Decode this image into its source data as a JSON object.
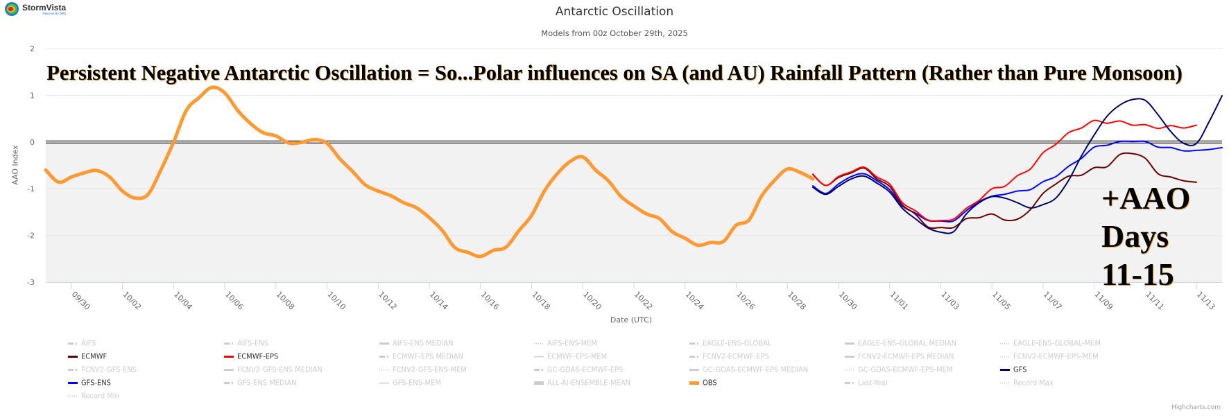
{
  "logo": {
    "brand": "StormVista",
    "tagline": "Powered By DMS"
  },
  "credits": "Highcharts.com",
  "annotations": {
    "headline": "Persistent Negative Antarctic Oscillation = So...Polar influences on SA (and AU) Rainfall Pattern (Rather than Pure Monsoon)",
    "callout_lines": [
      "+AAO",
      "Days",
      "11-15"
    ]
  },
  "chart_data": {
    "type": "line",
    "title": "Antarctic Oscillation",
    "subtitle": "Models from 00z October 29th, 2025",
    "xlabel": "Date (UTC)",
    "ylabel": "AAO Index",
    "xlim": [
      "2025-09-29T00:00Z",
      "2025-11-14T00:00Z"
    ],
    "ylim": [
      -3,
      2
    ],
    "y_ticks": [
      2,
      1,
      0,
      -1,
      -2,
      -3
    ],
    "x_tick_labels": [
      "09/30",
      "10/02",
      "10/04",
      "10/06",
      "10/08",
      "10/10",
      "10/12",
      "10/14",
      "10/16",
      "10/18",
      "10/20",
      "10/22",
      "10/24",
      "10/26",
      "10/28",
      "10/30",
      "11/01",
      "11/03",
      "11/05",
      "11/07",
      "11/09",
      "11/11",
      "11/13"
    ],
    "grid": true,
    "zero_line": true,
    "negative_band": {
      "from": -3,
      "to": 0,
      "color": "#f2f2f2"
    },
    "legend_placement": "bottom",
    "series": [
      {
        "name": "OBS",
        "color": "#ff9933",
        "width": 5,
        "points": [
          [
            "2025-09-29T00",
            -0.6
          ],
          [
            "2025-09-29T12",
            -0.86
          ],
          [
            "2025-09-30T00",
            -0.75
          ],
          [
            "2025-09-30T12",
            -0.66
          ],
          [
            "2025-10-01T00",
            -0.61
          ],
          [
            "2025-10-01T12",
            -0.75
          ],
          [
            "2025-10-02T00",
            -1.05
          ],
          [
            "2025-10-02T12",
            -1.2
          ],
          [
            "2025-10-03T00",
            -1.12
          ],
          [
            "2025-10-03T12",
            -0.6
          ],
          [
            "2025-10-04T00",
            0.0
          ],
          [
            "2025-10-04T12",
            0.68
          ],
          [
            "2025-10-05T00",
            0.95
          ],
          [
            "2025-10-05T12",
            1.17
          ],
          [
            "2025-10-06T00",
            1.05
          ],
          [
            "2025-10-06T12",
            0.68
          ],
          [
            "2025-10-07T00",
            0.4
          ],
          [
            "2025-10-07T12",
            0.2
          ],
          [
            "2025-10-08T00",
            0.13
          ],
          [
            "2025-10-08T12",
            -0.02
          ],
          [
            "2025-10-09T00",
            -0.01
          ],
          [
            "2025-10-09T12",
            0.05
          ],
          [
            "2025-10-10T00",
            -0.03
          ],
          [
            "2025-10-10T12",
            -0.36
          ],
          [
            "2025-10-11T00",
            -0.63
          ],
          [
            "2025-10-11T12",
            -0.92
          ],
          [
            "2025-10-12T00",
            -1.05
          ],
          [
            "2025-10-12T12",
            -1.15
          ],
          [
            "2025-10-13T00",
            -1.3
          ],
          [
            "2025-10-13T12",
            -1.41
          ],
          [
            "2025-10-14T00",
            -1.62
          ],
          [
            "2025-10-14T12",
            -1.89
          ],
          [
            "2025-10-15T00",
            -2.26
          ],
          [
            "2025-10-15T12",
            -2.36
          ],
          [
            "2025-10-16T00",
            -2.45
          ],
          [
            "2025-10-16T12",
            -2.32
          ],
          [
            "2025-10-17T00",
            -2.25
          ],
          [
            "2025-10-17T12",
            -1.9
          ],
          [
            "2025-10-18T00",
            -1.57
          ],
          [
            "2025-10-18T12",
            -1.05
          ],
          [
            "2025-10-19T00",
            -0.68
          ],
          [
            "2025-10-19T12",
            -0.42
          ],
          [
            "2025-10-20T00",
            -0.32
          ],
          [
            "2025-10-20T12",
            -0.6
          ],
          [
            "2025-10-21T00",
            -0.83
          ],
          [
            "2025-10-21T12",
            -1.17
          ],
          [
            "2025-10-22T00",
            -1.37
          ],
          [
            "2025-10-22T12",
            -1.54
          ],
          [
            "2025-10-23T00",
            -1.64
          ],
          [
            "2025-10-23T12",
            -1.92
          ],
          [
            "2025-10-24T00",
            -2.06
          ],
          [
            "2025-10-24T12",
            -2.21
          ],
          [
            "2025-10-25T00",
            -2.15
          ],
          [
            "2025-10-25T12",
            -2.13
          ],
          [
            "2025-10-26T00",
            -1.78
          ],
          [
            "2025-10-26T12",
            -1.67
          ],
          [
            "2025-10-27T00",
            -1.15
          ],
          [
            "2025-10-27T12",
            -0.82
          ],
          [
            "2025-10-28T00",
            -0.58
          ],
          [
            "2025-10-28T12",
            -0.65
          ],
          [
            "2025-10-29T00",
            -0.79
          ]
        ]
      },
      {
        "name": "ECMWF",
        "color": "#660000",
        "width": 2,
        "points": [
          [
            "2025-10-29T00",
            -0.7
          ],
          [
            "2025-10-29T12",
            -0.93
          ],
          [
            "2025-10-30T00",
            -0.76
          ],
          [
            "2025-10-30T12",
            -0.66
          ],
          [
            "2025-10-31T00",
            -0.56
          ],
          [
            "2025-10-31T12",
            -0.79
          ],
          [
            "2025-11-01T00",
            -0.95
          ],
          [
            "2025-11-01T12",
            -1.35
          ],
          [
            "2025-11-02T00",
            -1.54
          ],
          [
            "2025-11-02T12",
            -1.82
          ],
          [
            "2025-11-03T00",
            -1.83
          ],
          [
            "2025-11-03T12",
            -1.83
          ],
          [
            "2025-11-04T00",
            -1.64
          ],
          [
            "2025-11-04T12",
            -1.62
          ],
          [
            "2025-11-05T00",
            -1.54
          ],
          [
            "2025-11-05T12",
            -1.67
          ],
          [
            "2025-11-06T00",
            -1.65
          ],
          [
            "2025-11-06T12",
            -1.45
          ],
          [
            "2025-11-07T00",
            -1.1
          ],
          [
            "2025-11-07T12",
            -0.9
          ],
          [
            "2025-11-08T00",
            -0.73
          ],
          [
            "2025-11-08T12",
            -0.71
          ],
          [
            "2025-11-09T00",
            -0.55
          ],
          [
            "2025-11-09T12",
            -0.53
          ],
          [
            "2025-11-10T00",
            -0.27
          ],
          [
            "2025-11-10T12",
            -0.25
          ],
          [
            "2025-11-11T00",
            -0.35
          ],
          [
            "2025-11-11T12",
            -0.68
          ],
          [
            "2025-11-12T00",
            -0.75
          ],
          [
            "2025-11-12T12",
            -0.83
          ],
          [
            "2025-11-13T00",
            -0.86
          ]
        ]
      },
      {
        "name": "ECMWF-EPS",
        "color": "#ff0000",
        "width": 2,
        "points": [
          [
            "2025-10-29T00",
            -0.69
          ],
          [
            "2025-10-29T12",
            -0.93
          ],
          [
            "2025-10-30T00",
            -0.74
          ],
          [
            "2025-10-30T12",
            -0.64
          ],
          [
            "2025-10-31T00",
            -0.54
          ],
          [
            "2025-10-31T12",
            -0.75
          ],
          [
            "2025-11-01T00",
            -0.9
          ],
          [
            "2025-11-01T12",
            -1.3
          ],
          [
            "2025-11-02T00",
            -1.47
          ],
          [
            "2025-11-02T12",
            -1.67
          ],
          [
            "2025-11-03T00",
            -1.68
          ],
          [
            "2025-11-03T12",
            -1.65
          ],
          [
            "2025-11-04T00",
            -1.42
          ],
          [
            "2025-11-04T12",
            -1.25
          ],
          [
            "2025-11-05T00",
            -1.0
          ],
          [
            "2025-11-05T12",
            -0.95
          ],
          [
            "2025-11-06T00",
            -0.72
          ],
          [
            "2025-11-06T12",
            -0.58
          ],
          [
            "2025-11-07T00",
            -0.23
          ],
          [
            "2025-11-07T12",
            -0.05
          ],
          [
            "2025-11-08T00",
            0.2
          ],
          [
            "2025-11-08T12",
            0.3
          ],
          [
            "2025-11-09T00",
            0.46
          ],
          [
            "2025-11-09T12",
            0.4
          ],
          [
            "2025-11-10T00",
            0.45
          ],
          [
            "2025-11-10T12",
            0.36
          ],
          [
            "2025-11-11T00",
            0.37
          ],
          [
            "2025-11-11T12",
            0.29
          ],
          [
            "2025-11-12T00",
            0.35
          ],
          [
            "2025-11-12T12",
            0.3
          ],
          [
            "2025-11-13T00",
            0.36
          ]
        ]
      },
      {
        "name": "GFS",
        "color": "#000066",
        "width": 2,
        "points": [
          [
            "2025-10-29T00",
            -0.97
          ],
          [
            "2025-10-29T12",
            -1.12
          ],
          [
            "2025-10-30T00",
            -0.95
          ],
          [
            "2025-10-30T12",
            -0.79
          ],
          [
            "2025-10-31T00",
            -0.73
          ],
          [
            "2025-10-31T12",
            -0.88
          ],
          [
            "2025-11-01T00",
            -1.07
          ],
          [
            "2025-11-01T12",
            -1.42
          ],
          [
            "2025-11-02T00",
            -1.64
          ],
          [
            "2025-11-02T12",
            -1.84
          ],
          [
            "2025-11-03T00",
            -1.93
          ],
          [
            "2025-11-03T12",
            -1.92
          ],
          [
            "2025-11-04T00",
            -1.54
          ],
          [
            "2025-11-04T12",
            -1.3
          ],
          [
            "2025-11-05T00",
            -1.17
          ],
          [
            "2025-11-05T12",
            -1.2
          ],
          [
            "2025-11-06T00",
            -1.3
          ],
          [
            "2025-11-06T12",
            -1.41
          ],
          [
            "2025-11-07T00",
            -1.34
          ],
          [
            "2025-11-07T12",
            -1.2
          ],
          [
            "2025-11-08T00",
            -0.82
          ],
          [
            "2025-11-08T12",
            -0.3
          ],
          [
            "2025-11-09T00",
            0.15
          ],
          [
            "2025-11-09T12",
            0.55
          ],
          [
            "2025-11-10T00",
            0.79
          ],
          [
            "2025-11-10T12",
            0.91
          ],
          [
            "2025-11-11T00",
            0.89
          ],
          [
            "2025-11-11T12",
            0.58
          ],
          [
            "2025-11-12T00",
            0.22
          ],
          [
            "2025-11-12T12",
            -0.03
          ],
          [
            "2025-11-13T00",
            -0.03
          ],
          [
            "2025-11-13T12",
            0.44
          ],
          [
            "2025-11-14T00",
            0.99
          ]
        ]
      },
      {
        "name": "GFS-ENS",
        "color": "#0000ff",
        "width": 2,
        "points": [
          [
            "2025-10-29T00",
            -0.94
          ],
          [
            "2025-10-29T12",
            -1.1
          ],
          [
            "2025-10-30T00",
            -0.9
          ],
          [
            "2025-10-30T12",
            -0.74
          ],
          [
            "2025-10-31T00",
            -0.68
          ],
          [
            "2025-10-31T12",
            -0.83
          ],
          [
            "2025-11-01T00",
            -1.02
          ],
          [
            "2025-11-01T12",
            -1.37
          ],
          [
            "2025-11-02T00",
            -1.52
          ],
          [
            "2025-11-02T12",
            -1.68
          ],
          [
            "2025-11-03T00",
            -1.69
          ],
          [
            "2025-11-03T12",
            -1.69
          ],
          [
            "2025-11-04T00",
            -1.47
          ],
          [
            "2025-11-04T12",
            -1.28
          ],
          [
            "2025-11-05T00",
            -1.16
          ],
          [
            "2025-11-05T12",
            -1.12
          ],
          [
            "2025-11-06T00",
            -1.05
          ],
          [
            "2025-11-06T12",
            -1.02
          ],
          [
            "2025-11-07T00",
            -0.85
          ],
          [
            "2025-11-07T12",
            -0.74
          ],
          [
            "2025-11-08T00",
            -0.52
          ],
          [
            "2025-11-08T12",
            -0.35
          ],
          [
            "2025-11-09T00",
            -0.11
          ],
          [
            "2025-11-09T12",
            -0.07
          ],
          [
            "2025-11-10T00",
            0.01
          ],
          [
            "2025-11-10T12",
            0.01
          ],
          [
            "2025-11-11T00",
            0.01
          ],
          [
            "2025-11-11T12",
            -0.11
          ],
          [
            "2025-11-12T00",
            -0.12
          ],
          [
            "2025-11-12T12",
            -0.19
          ],
          [
            "2025-11-13T00",
            -0.18
          ],
          [
            "2025-11-13T12",
            -0.16
          ],
          [
            "2025-11-14T00",
            -0.12
          ]
        ]
      }
    ],
    "legend": [
      {
        "name": "AIFS",
        "active": false,
        "symbol": "dashdot"
      },
      {
        "name": "AIFS-ENS",
        "active": false,
        "symbol": "dashdot"
      },
      {
        "name": "AIFS-ENS MEDIAN",
        "active": false,
        "symbol": "solid"
      },
      {
        "name": "AIFS-ENS-MEM",
        "active": false,
        "symbol": "dotted"
      },
      {
        "name": "EAGLE-ENS-GLOBAL",
        "active": false,
        "symbol": "dashdot"
      },
      {
        "name": "EAGLE-ENS-GLOBAL MEDIAN",
        "active": false,
        "symbol": "solid"
      },
      {
        "name": "EAGLE-ENS-GLOBAL-MEM",
        "active": false,
        "symbol": "dotted"
      },
      {
        "name": "ECMWF",
        "active": true,
        "symbol": "solid",
        "color": "#660000"
      },
      {
        "name": "ECMWF-EPS",
        "active": true,
        "symbol": "solid",
        "color": "#ff0000"
      },
      {
        "name": "ECMWF-EPS MEDIAN",
        "active": false,
        "symbol": "dashdot"
      },
      {
        "name": "ECMWF-EPS-MEM",
        "active": false,
        "symbol": "thin"
      },
      {
        "name": "FCNV2-ECMWF-EPS",
        "active": false,
        "symbol": "dashdot"
      },
      {
        "name": "FCNV2-ECMWF-EPS MEDIAN",
        "active": false,
        "symbol": "solid"
      },
      {
        "name": "FCNV2-ECMWF-EPS-MEM",
        "active": false,
        "symbol": "dotted"
      },
      {
        "name": "FCNV2-GFS-ENS",
        "active": false,
        "symbol": "dashdot"
      },
      {
        "name": "FCNV2-GFS-ENS MEDIAN",
        "active": false,
        "symbol": "solid"
      },
      {
        "name": "FCNV2-GFS-ENS-MEM",
        "active": false,
        "symbol": "dotted"
      },
      {
        "name": "GC-GDAS-ECMWF-EPS",
        "active": false,
        "symbol": "dashdot"
      },
      {
        "name": "GC-GDAS-ECMWF-EPS MEDIAN",
        "active": false,
        "symbol": "solid"
      },
      {
        "name": "GC-GDAS-ECMWF-EPS-MEM",
        "active": false,
        "symbol": "dotted"
      },
      {
        "name": "GFS",
        "active": true,
        "symbol": "solid",
        "color": "#000066"
      },
      {
        "name": "GFS-ENS",
        "active": true,
        "symbol": "solid",
        "color": "#0000ff"
      },
      {
        "name": "GFS-ENS MEDIAN",
        "active": false,
        "symbol": "dashdot"
      },
      {
        "name": "GFS-ENS-MEM",
        "active": false,
        "symbol": "thin"
      },
      {
        "name": "ALL-AI-ENSEMBLE-MEAN",
        "active": false,
        "symbol": "thick"
      },
      {
        "name": "OBS",
        "active": true,
        "symbol": "thick",
        "color": "#ff9933"
      },
      {
        "name": "Last-Year",
        "active": false,
        "symbol": "dashdot"
      },
      {
        "name": "Record Max",
        "active": false,
        "symbol": "dotted"
      },
      {
        "name": "Record Min",
        "active": false,
        "symbol": "dotted"
      }
    ]
  }
}
